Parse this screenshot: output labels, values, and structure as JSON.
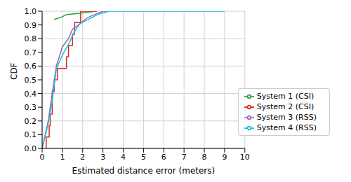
{
  "chart_data": {
    "type": "line",
    "xlabel": "Estimated distance error (meters)",
    "ylabel": "CDF",
    "xlim": [
      0,
      10
    ],
    "ylim": [
      0,
      1
    ],
    "xticks": [
      0,
      1,
      2,
      3,
      4,
      5,
      6,
      7,
      8,
      9,
      10
    ],
    "yticks": [
      {
        "value": 0,
        "label": "0.0"
      },
      {
        "value": 0.1,
        "label": "0.1"
      },
      {
        "value": 0.2,
        "label": "0.2"
      },
      {
        "value": 0.3,
        "label": "0.3"
      },
      {
        "value": 0.4,
        "label": "0.4"
      },
      {
        "value": 0.5,
        "label": "0.5"
      },
      {
        "value": 0.6,
        "label": "0.6"
      },
      {
        "value": 0.7,
        "label": "0.7"
      },
      {
        "value": 0.8,
        "label": "0.8"
      },
      {
        "value": 0.9,
        "label": "0.9"
      },
      {
        "value": 1,
        "label": "1.0"
      }
    ],
    "grid": true,
    "legend": "lower right",
    "series": [
      {
        "name": "System 1 (CSI)",
        "color": "#2ca02c",
        "line_style": "solid",
        "x": [
          0.6,
          1.0,
          1.2,
          1.8,
          2.7
        ],
        "values": [
          0.94,
          0.96,
          0.975,
          0.985,
          1.0
        ]
      },
      {
        "name": "System 2 (CSI)",
        "color": "#d62728",
        "line_style": "step",
        "x": [
          0.2,
          0.2,
          0.35,
          0.4,
          0.5,
          0.6,
          0.75,
          1.2,
          1.3,
          1.5,
          1.6,
          1.9,
          2.7
        ],
        "values": [
          0,
          0.083,
          0.167,
          0.25,
          0.417,
          0.5,
          0.583,
          0.667,
          0.75,
          0.833,
          0.917,
          1.0,
          1.0
        ]
      },
      {
        "name": "System 3 (RSS)",
        "color": "#9467bd",
        "line_style": "solid",
        "x": [
          0,
          0.3,
          0.5,
          0.7,
          1.0,
          1.3,
          1.5,
          1.8,
          2.2,
          2.5,
          3.0,
          3.3
        ],
        "values": [
          0,
          0.2,
          0.4,
          0.6,
          0.74,
          0.8,
          0.87,
          0.9,
          0.95,
          0.97,
          1.0,
          1.0
        ]
      },
      {
        "name": "System 4 (RSS)",
        "color": "#17becf",
        "line_style": "solid",
        "x": [
          0,
          0.3,
          0.5,
          0.7,
          1.0,
          1.3,
          1.6,
          1.8,
          2.0,
          2.4,
          2.8,
          3.3,
          9.0
        ],
        "values": [
          0,
          0.18,
          0.35,
          0.58,
          0.68,
          0.76,
          0.85,
          0.9,
          0.92,
          0.95,
          0.98,
          1.0,
          1.0
        ]
      }
    ]
  }
}
